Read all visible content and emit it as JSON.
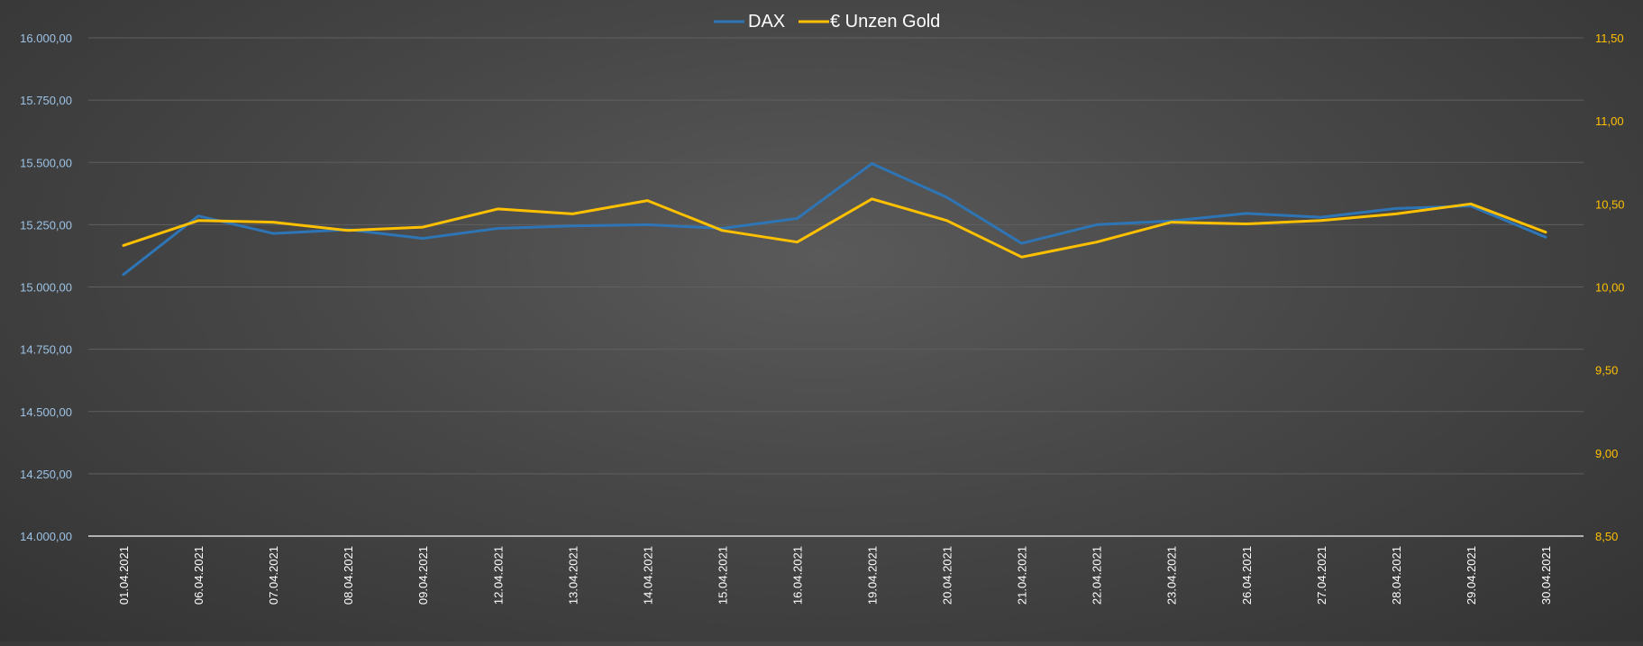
{
  "chart_data": {
    "type": "line",
    "title": "",
    "categories": [
      "01.04.2021",
      "06.04.2021",
      "07.04.2021",
      "08.04.2021",
      "09.04.2021",
      "12.04.2021",
      "13.04.2021",
      "14.04.2021",
      "15.04.2021",
      "16.04.2021",
      "19.04.2021",
      "20.04.2021",
      "21.04.2021",
      "22.04.2021",
      "23.04.2021",
      "26.04.2021",
      "27.04.2021",
      "28.04.2021",
      "29.04.2021",
      "30.04.2021"
    ],
    "left_axis": {
      "min": 14000,
      "max": 16000,
      "step": 250,
      "ticks": [
        "14.000,00",
        "14.250,00",
        "14.500,00",
        "14.750,00",
        "15.000,00",
        "15.250,00",
        "15.500,00",
        "15.750,00",
        "16.000,00"
      ],
      "color": "#9dc3e6"
    },
    "right_axis": {
      "min": 8.5,
      "max": 11.5,
      "step": 0.5,
      "ticks": [
        "8,50",
        "9,00",
        "9,50",
        "10,00",
        "10,50",
        "11,00",
        "11,50"
      ],
      "color": "#ffc000"
    },
    "series": [
      {
        "name": "DAX",
        "axis": "left",
        "color": "#2e75b6",
        "values": [
          15050,
          15285,
          15215,
          15230,
          15195,
          15235,
          15245,
          15250,
          15235,
          15275,
          15495,
          15360,
          15175,
          15250,
          15265,
          15295,
          15280,
          15315,
          15325,
          15200
        ]
      },
      {
        "name": "€ Unzen Gold",
        "axis": "right",
        "color": "#ffc000",
        "values": [
          10.25,
          10.4,
          10.39,
          10.34,
          10.36,
          10.47,
          10.44,
          10.52,
          10.34,
          10.27,
          10.53,
          10.4,
          10.18,
          10.27,
          10.39,
          10.38,
          10.4,
          10.44,
          10.5,
          10.33
        ]
      }
    ],
    "legend": {
      "placement": "top-center"
    },
    "grid": true
  },
  "colors": {
    "gridline": "#5f5f5f",
    "baseline": "#d9d9d9",
    "category_label": "#ffffff",
    "legend_text": "#ffffff"
  }
}
